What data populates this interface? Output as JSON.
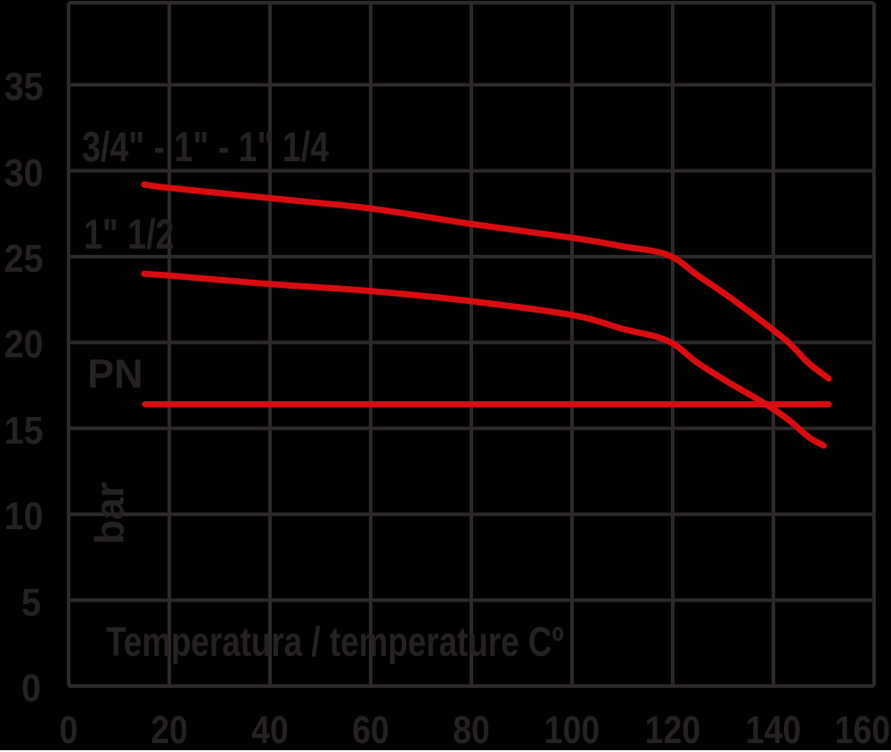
{
  "chart_data": {
    "type": "line",
    "title": "",
    "xlabel": "Temperatura / temperature Cº",
    "ylabel": "bar",
    "x_ticks": [
      0,
      20,
      40,
      60,
      80,
      100,
      120,
      140,
      160
    ],
    "y_ticks": [
      0,
      5,
      10,
      15,
      20,
      25,
      30,
      35
    ],
    "xlim": [
      0,
      160
    ],
    "ylim": [
      0,
      39.7
    ],
    "grid": true,
    "legend_position": "inline-annotations",
    "series": [
      {
        "name": "3/4\" - 1\" - 1\" 1/4",
        "points": [
          [
            15,
            29.2
          ],
          [
            20,
            29.0
          ],
          [
            40,
            28.4
          ],
          [
            60,
            27.8
          ],
          [
            80,
            26.9
          ],
          [
            100,
            26.1
          ],
          [
            110,
            25.6
          ],
          [
            119,
            25.1
          ],
          [
            125,
            23.9
          ],
          [
            131,
            22.7
          ],
          [
            137,
            21.4
          ],
          [
            143,
            20.0
          ],
          [
            147,
            18.8
          ],
          [
            151,
            17.9
          ]
        ]
      },
      {
        "name": "1\" 1/2",
        "points": [
          [
            15,
            24.0
          ],
          [
            20,
            23.9
          ],
          [
            40,
            23.4
          ],
          [
            60,
            23.0
          ],
          [
            80,
            22.4
          ],
          [
            100,
            21.6
          ],
          [
            110,
            20.8
          ],
          [
            119,
            20.1
          ],
          [
            125,
            18.8
          ],
          [
            131,
            17.7
          ],
          [
            138,
            16.5
          ],
          [
            143,
            15.5
          ],
          [
            147,
            14.5
          ],
          [
            150,
            14.0
          ]
        ]
      },
      {
        "name": "PN",
        "points": [
          [
            15.2,
            16.4
          ],
          [
            151,
            16.4
          ]
        ]
      }
    ],
    "colors": {
      "background": "#000000",
      "grid": "#2e292a",
      "text": "#262122",
      "curve": "#d90d10"
    }
  },
  "annotations": {
    "series1_label": "3/4\" - 1\" - 1\" 1/4",
    "series2_label": "1\" 1/2",
    "pn": "PN",
    "unit": "bar",
    "x_axis_title": "Temperatura / temperature Cº"
  }
}
